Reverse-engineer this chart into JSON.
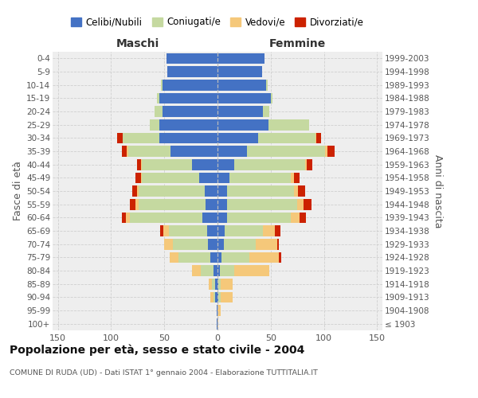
{
  "age_groups": [
    "100+",
    "95-99",
    "90-94",
    "85-89",
    "80-84",
    "75-79",
    "70-74",
    "65-69",
    "60-64",
    "55-59",
    "50-54",
    "45-49",
    "40-44",
    "35-39",
    "30-34",
    "25-29",
    "20-24",
    "15-19",
    "10-14",
    "5-9",
    "0-4"
  ],
  "birth_years": [
    "≤ 1903",
    "1904-1908",
    "1909-1913",
    "1914-1918",
    "1919-1923",
    "1924-1928",
    "1929-1933",
    "1934-1938",
    "1939-1943",
    "1944-1948",
    "1949-1953",
    "1954-1958",
    "1959-1963",
    "1964-1968",
    "1969-1973",
    "1974-1978",
    "1979-1983",
    "1984-1988",
    "1989-1993",
    "1994-1998",
    "1999-2003"
  ],
  "colors": {
    "celibi": "#4472c4",
    "coniugati": "#c5d9a0",
    "vedovi": "#f5c87a",
    "divorziati": "#cc2200"
  },
  "maschi": {
    "celibi": [
      1,
      1,
      2,
      2,
      4,
      7,
      9,
      10,
      14,
      11,
      12,
      17,
      24,
      44,
      55,
      55,
      52,
      55,
      52,
      47,
      48
    ],
    "coniugati": [
      0,
      0,
      2,
      3,
      12,
      30,
      33,
      36,
      68,
      63,
      62,
      54,
      47,
      40,
      34,
      9,
      7,
      2,
      1,
      0,
      0
    ],
    "vedovi": [
      0,
      0,
      3,
      3,
      8,
      8,
      8,
      5,
      4,
      3,
      2,
      1,
      1,
      1,
      0,
      0,
      0,
      0,
      0,
      0,
      0
    ],
    "divorziati": [
      0,
      0,
      0,
      0,
      0,
      0,
      0,
      3,
      4,
      5,
      4,
      5,
      4,
      5,
      5,
      0,
      0,
      0,
      0,
      0,
      0
    ]
  },
  "femmine": {
    "celibi": [
      0,
      0,
      1,
      1,
      2,
      4,
      6,
      7,
      9,
      9,
      9,
      11,
      16,
      28,
      38,
      48,
      43,
      50,
      46,
      42,
      44
    ],
    "coniugati": [
      0,
      0,
      2,
      2,
      14,
      26,
      30,
      36,
      60,
      66,
      63,
      58,
      66,
      73,
      54,
      38,
      6,
      2,
      1,
      0,
      0
    ],
    "vedovi": [
      1,
      3,
      11,
      11,
      33,
      28,
      20,
      11,
      8,
      6,
      4,
      3,
      2,
      2,
      1,
      0,
      0,
      0,
      0,
      0,
      0
    ],
    "divorziati": [
      0,
      0,
      0,
      0,
      0,
      2,
      2,
      5,
      6,
      7,
      6,
      5,
      5,
      7,
      4,
      0,
      0,
      0,
      0,
      0,
      0
    ]
  },
  "title": "Popolazione per età, sesso e stato civile - 2004",
  "subtitle": "COMUNE DI RUDA (UD) - Dati ISTAT 1° gennaio 2004 - Elaborazione TUTTITALIA.IT",
  "xlabel_maschi": "Maschi",
  "xlabel_femmine": "Femmine",
  "ylabel_left": "Fasce di età",
  "ylabel_right": "Anni di nascita",
  "xlim": 155,
  "legend_labels": [
    "Celibi/Nubili",
    "Coniugati/e",
    "Vedovi/e",
    "Divorziati/e"
  ],
  "bg_color": "#eeeeee",
  "grid_color": "#cccccc"
}
